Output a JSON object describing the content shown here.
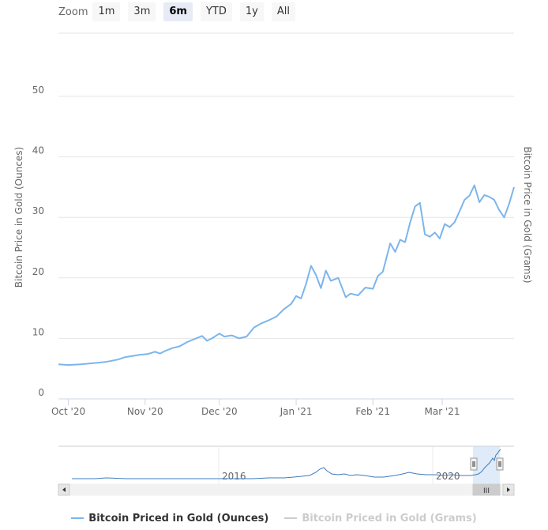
{
  "range_selector": {
    "zoom_label": "Zoom",
    "buttons": [
      {
        "label": "1m",
        "active": false
      },
      {
        "label": "3m",
        "active": false
      },
      {
        "label": "6m",
        "active": true
      },
      {
        "label": "YTD",
        "active": false
      },
      {
        "label": "1y",
        "active": false
      },
      {
        "label": "All",
        "active": false
      }
    ]
  },
  "colors": {
    "series_primary": "#7cb5ec",
    "series_hidden": "#cccccc",
    "navigator_line": "#3d7bbf",
    "navigator_mask": "#c5daf2",
    "grid": "#e6e6e6"
  },
  "navigator": {
    "labels": [
      "2016",
      "2020"
    ],
    "scroll_grip": "III"
  },
  "chart_data": {
    "type": "line",
    "title": "",
    "ylabel": "Bitcoin Price in Gold (Ounces)",
    "ylabel_right": "Bitcoin Price in Gold (Grams)",
    "ylim": [
      0,
      50
    ],
    "y_ticks": [
      "0",
      "10",
      "20",
      "30",
      "40",
      "50"
    ],
    "x_ticks": [
      "Oct '20",
      "Nov '20",
      "Dec '20",
      "Jan '21",
      "Feb '21",
      "Mar '21"
    ],
    "x_tick_dates": [
      "2020-10-01",
      "2020-11-01",
      "2020-12-01",
      "2021-01-01",
      "2021-02-01",
      "2021-03-01"
    ],
    "xlim": [
      "2020-09-27",
      "2021-03-30"
    ],
    "grid": true,
    "legend_position": "bottom-center",
    "series": [
      {
        "name": "Bitcoin Priced in Gold (Ounces)",
        "visible": true,
        "x": [
          "2020-09-27",
          "2020-10-01",
          "2020-10-06",
          "2020-10-11",
          "2020-10-16",
          "2020-10-21",
          "2020-10-24",
          "2020-10-27",
          "2020-10-30",
          "2020-11-02",
          "2020-11-05",
          "2020-11-07",
          "2020-11-09",
          "2020-11-12",
          "2020-11-15",
          "2020-11-18",
          "2020-11-21",
          "2020-11-24",
          "2020-11-26",
          "2020-11-28",
          "2020-12-01",
          "2020-12-03",
          "2020-12-06",
          "2020-12-09",
          "2020-12-12",
          "2020-12-15",
          "2020-12-18",
          "2020-12-21",
          "2020-12-24",
          "2020-12-27",
          "2020-12-30",
          "2021-01-01",
          "2021-01-03",
          "2021-01-05",
          "2021-01-07",
          "2021-01-09",
          "2021-01-11",
          "2021-01-13",
          "2021-01-15",
          "2021-01-18",
          "2021-01-21",
          "2021-01-23",
          "2021-01-26",
          "2021-01-29",
          "2021-02-01",
          "2021-02-03",
          "2021-02-05",
          "2021-02-08",
          "2021-02-10",
          "2021-02-12",
          "2021-02-14",
          "2021-02-16",
          "2021-02-18",
          "2021-02-20",
          "2021-02-22",
          "2021-02-24",
          "2021-02-26",
          "2021-02-28",
          "2021-03-02",
          "2021-03-04",
          "2021-03-06",
          "2021-03-08",
          "2021-03-10",
          "2021-03-12",
          "2021-03-14",
          "2021-03-16",
          "2021-03-18",
          "2021-03-20",
          "2021-03-22",
          "2021-03-24",
          "2021-03-26",
          "2021-03-28",
          "2021-03-30"
        ],
        "values": [
          5.7,
          5.6,
          5.7,
          5.9,
          6.1,
          6.5,
          6.9,
          7.1,
          7.3,
          7.4,
          7.8,
          7.5,
          7.9,
          8.4,
          8.7,
          9.4,
          9.9,
          10.4,
          9.6,
          10.0,
          10.8,
          10.3,
          10.5,
          10.0,
          10.3,
          11.8,
          12.5,
          13.0,
          13.6,
          14.8,
          15.7,
          17.0,
          16.6,
          19.0,
          22.0,
          20.5,
          18.3,
          21.2,
          19.5,
          20.0,
          16.8,
          17.4,
          17.1,
          18.4,
          18.2,
          20.3,
          21.0,
          25.7,
          24.3,
          26.3,
          25.9,
          29.1,
          31.8,
          32.4,
          27.2,
          26.8,
          27.5,
          26.5,
          28.9,
          28.4,
          29.2,
          31.0,
          32.9,
          33.6,
          35.3,
          32.5,
          33.7,
          33.4,
          32.9,
          31.2,
          30.0,
          32.2,
          35.0
        ]
      },
      {
        "name": "Bitcoin Priced in Gold (Grams)",
        "visible": false,
        "x": [],
        "values": []
      }
    ]
  }
}
